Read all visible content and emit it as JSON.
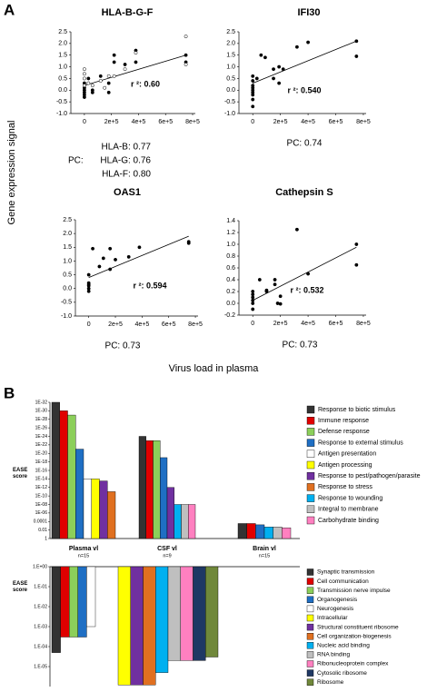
{
  "panel_a": {
    "label": "A",
    "ylabel": "Gene expression signal",
    "xlabel": "Virus load in plasma"
  },
  "panel_b": {
    "label": "B"
  },
  "chart_data": [
    {
      "type": "scatter",
      "title": "HLA-B-G-F",
      "annotation": "r ²: 0.60",
      "note_label": "PC:",
      "notes": [
        "HLA-B: 0.77",
        "HLA-G: 0.76",
        "HLA-F: 0.80"
      ],
      "series": [
        {
          "color": "#000000",
          "x": [
            0,
            0,
            0,
            0,
            0,
            0,
            30000,
            60000,
            60000,
            120000,
            180000,
            180000,
            220000,
            220000,
            300000,
            380000,
            380000,
            750000,
            750000
          ],
          "values": [
            0.3,
            0.1,
            0,
            -0.1,
            -0.2,
            -0.3,
            0.5,
            -0.1,
            0,
            0.6,
            0.3,
            -0.1,
            1.5,
            1.2,
            1.1,
            1.7,
            1.2,
            1.5,
            1.2
          ]
        },
        {
          "color": "#ffffff",
          "x": [
            0,
            0,
            0,
            0,
            30000,
            60000,
            120000,
            150000,
            180000,
            220000,
            300000,
            380000,
            750000,
            750000
          ],
          "values": [
            0.9,
            0.7,
            0.5,
            0.2,
            0.3,
            0.2,
            0.4,
            0.1,
            0.6,
            0.6,
            0.9,
            1.6,
            2.3,
            1.1
          ]
        }
      ],
      "trend_line": {
        "x": [
          0,
          750000
        ],
        "y": [
          0.2,
          1.5
        ]
      },
      "xlim": [
        -100000,
        820000
      ],
      "xticks": [
        0,
        {
          "value": 200000,
          "label": "2e+5"
        },
        {
          "value": 400000,
          "label": "4e+5"
        },
        {
          "value": 600000,
          "label": "6e+5"
        },
        {
          "value": 800000,
          "label": "8e+5"
        }
      ],
      "ylim": [
        -1.0,
        2.5
      ],
      "yticks": [
        2.5,
        {
          "value": 2,
          "label": "2.0"
        },
        1.5,
        {
          "value": 1,
          "label": "1.0"
        },
        0.5,
        {
          "value": 0,
          "label": "0.0"
        },
        -0.5,
        {
          "value": -1,
          "label": "-1.0"
        }
      ]
    },
    {
      "type": "scatter",
      "title": "IFI30",
      "annotation": "r ²: 0.540",
      "note": "PC: 0.74",
      "series": [
        {
          "color": "#000000",
          "x": [
            0,
            0,
            0,
            0,
            0,
            0,
            0,
            0,
            0,
            30000,
            60000,
            90000,
            150000,
            150000,
            190000,
            190000,
            220000,
            320000,
            400000,
            750000,
            750000
          ],
          "values": [
            0.6,
            0.4,
            0.2,
            0.1,
            0,
            -0.1,
            -0.2,
            -0.4,
            -0.7,
            0.5,
            1.5,
            1.4,
            0.9,
            0.5,
            1.0,
            0.3,
            0.9,
            1.85,
            2.05,
            2.1,
            1.45
          ]
        }
      ],
      "trend_line": {
        "x": [
          0,
          750000
        ],
        "y": [
          0.3,
          2.1
        ]
      },
      "xlim": [
        -100000,
        820000
      ],
      "xticks": [
        0,
        {
          "value": 200000,
          "label": "2e+5"
        },
        {
          "value": 400000,
          "label": "4e+5"
        },
        {
          "value": 600000,
          "label": "6e+5"
        },
        {
          "value": 800000,
          "label": "8e+5"
        }
      ],
      "ylim": [
        -1.0,
        2.5
      ],
      "yticks": [
        2.5,
        {
          "value": 2,
          "label": "2.0"
        },
        1.5,
        {
          "value": 1,
          "label": "1.0"
        },
        0.5,
        {
          "value": 0,
          "label": "0.0"
        },
        -0.5,
        {
          "value": -1,
          "label": "-1.0"
        }
      ]
    },
    {
      "type": "scatter",
      "title": "OAS1",
      "annotation": "r ²: 0.594",
      "note": "PC: 0.73",
      "series": [
        {
          "color": "#000000",
          "x": [
            0,
            0,
            0,
            0,
            0,
            0,
            30000,
            80000,
            110000,
            160000,
            160000,
            200000,
            300000,
            380000,
            750000,
            750000
          ],
          "values": [
            0.5,
            0.2,
            0.15,
            0.1,
            0,
            -0.1,
            1.45,
            0.8,
            1.1,
            0.7,
            1.45,
            1.05,
            1.15,
            1.5,
            1.7,
            1.65
          ]
        }
      ],
      "trend_line": {
        "x": [
          0,
          750000
        ],
        "y": [
          0.4,
          1.9
        ]
      },
      "xlim": [
        -100000,
        820000
      ],
      "xticks": [
        0,
        {
          "value": 200000,
          "label": "2e+5"
        },
        {
          "value": 400000,
          "label": "4e+5"
        },
        {
          "value": 600000,
          "label": "6e+5"
        },
        {
          "value": 800000,
          "label": "8e+5"
        }
      ],
      "ylim": [
        -1.0,
        2.5
      ],
      "yticks": [
        2.5,
        {
          "value": 2,
          "label": "2.0"
        },
        1.5,
        {
          "value": 1,
          "label": "1.0"
        },
        0.5,
        {
          "value": 0,
          "label": "0.0"
        },
        -0.5,
        {
          "value": -1,
          "label": "-1.0"
        }
      ]
    },
    {
      "type": "scatter",
      "title": "Cathepsin S",
      "annotation": "r ²: 0.532",
      "note": "PC: 0.73",
      "series": [
        {
          "color": "#000000",
          "x": [
            0,
            0,
            0,
            0,
            0,
            0,
            50000,
            100000,
            100000,
            160000,
            160000,
            180000,
            200000,
            200000,
            320000,
            400000,
            750000,
            750000
          ],
          "values": [
            0.2,
            0.15,
            0.1,
            0.05,
            0,
            -0.1,
            0.4,
            0.22,
            0.2,
            0.4,
            0.32,
            0,
            -0.01,
            0.12,
            1.25,
            0.5,
            1.0,
            0.65
          ]
        }
      ],
      "trend_line": {
        "x": [
          0,
          750000
        ],
        "y": [
          0.05,
          0.95
        ]
      },
      "xlim": [
        -100000,
        820000
      ],
      "xticks": [
        0,
        {
          "value": 200000,
          "label": "2e+5"
        },
        {
          "value": 400000,
          "label": "4e+5"
        },
        {
          "value": 600000,
          "label": "6e+5"
        },
        {
          "value": 800000,
          "label": "8e+5"
        }
      ],
      "ylim": [
        -0.2,
        1.4
      ],
      "yticks": [
        1.4,
        1.2,
        {
          "value": 1,
          "label": "1.0"
        },
        0.8,
        0.6,
        0.4,
        0.2,
        {
          "value": 0,
          "label": "0.0"
        },
        -0.2
      ]
    },
    {
      "type": "bar",
      "ylabel": "EASE score",
      "log": true,
      "categories": [
        "Plasma vl",
        "CSF vl",
        "Brain vl"
      ],
      "category_notes": [
        "n=15",
        "n=9",
        "n=15"
      ],
      "ylim": [
        1,
        1e-32
      ],
      "yticks": [
        {
          "value": 1e-32,
          "label": "1E-32"
        },
        {
          "value": 1e-30,
          "label": "1E-30"
        },
        {
          "value": 1e-28,
          "label": "1E-28"
        },
        {
          "value": 1e-26,
          "label": "1E-26"
        },
        {
          "value": 1e-24,
          "label": "1E-24"
        },
        {
          "value": 1e-22,
          "label": "1E-22"
        },
        {
          "value": 1e-20,
          "label": "1E-20"
        },
        {
          "value": 1e-18,
          "label": "1E-18"
        },
        {
          "value": 1e-16,
          "label": "1E-16"
        },
        {
          "value": 1e-14,
          "label": "1E-14"
        },
        {
          "value": 1e-12,
          "label": "1E-12"
        },
        {
          "value": 1e-10,
          "label": "1E-10"
        },
        {
          "value": 1e-08,
          "label": "1E-08"
        },
        {
          "value": 1e-06,
          "label": "1E-06"
        },
        0.0001,
        0.01,
        1
      ],
      "series": [
        {
          "name": "Response to biotic stimulus",
          "color": "#333333",
          "values": [
            1e-32,
            1e-24,
            0.0003
          ]
        },
        {
          "name": "Immune response",
          "color": "#e00000",
          "values": [
            1e-30,
            1e-23,
            0.0003
          ]
        },
        {
          "name": "Defense response",
          "color": "#8ccf5a",
          "values": [
            1e-29,
            1e-23,
            null
          ]
        },
        {
          "name": "Response to external stimulus",
          "color": "#1f6fc4",
          "values": [
            1e-21,
            1e-19,
            0.0006
          ]
        },
        {
          "name": "Antigen presentation",
          "color": "#ffffff",
          "values": [
            1e-14,
            null,
            null
          ]
        },
        {
          "name": "Antigen processing",
          "color": "#ffff00",
          "values": [
            1e-14,
            null,
            null
          ]
        },
        {
          "name": "Response to pest/pathogen/parasite",
          "color": "#7030a0",
          "values": [
            3e-14,
            1e-12,
            null
          ]
        },
        {
          "name": "Response to stress",
          "color": "#e07020",
          "values": [
            1e-11,
            null,
            null
          ]
        },
        {
          "name": "Response to wounding",
          "color": "#00b0f0",
          "values": [
            null,
            1e-08,
            0.002
          ]
        },
        {
          "name": "Integral to membrane",
          "color": "#bfbfbf",
          "values": [
            null,
            1e-08,
            0.002
          ]
        },
        {
          "name": "Carbohydrate binding",
          "color": "#ff80c0",
          "values": [
            null,
            1e-08,
            0.003
          ]
        }
      ]
    },
    {
      "type": "bar",
      "ylabel": "EASE score",
      "log": true,
      "categories": [
        null,
        null
      ],
      "ylim": [
        1e-06,
        1
      ],
      "yticks": [
        {
          "value": 1,
          "label": "1.E+00"
        },
        {
          "value": 0.1,
          "label": "1.E-01"
        },
        {
          "value": 0.01,
          "label": "1.E-02"
        },
        {
          "value": 0.001,
          "label": "1.E-03"
        },
        {
          "value": 0.0001,
          "label": "1.E-04"
        },
        {
          "value": 1e-05,
          "label": "1.E-05"
        }
      ],
      "series": [
        {
          "name": "Synaptic transmission",
          "color": "#333333",
          "values": [
            5e-05,
            null
          ]
        },
        {
          "name": "Cell communication",
          "color": "#e00000",
          "values": [
            0.0003,
            null
          ]
        },
        {
          "name": "Transmission nerve impulse",
          "color": "#8ccf5a",
          "values": [
            0.0003,
            null
          ]
        },
        {
          "name": "Organogenesis",
          "color": "#1f6fc4",
          "values": [
            0.0003,
            null
          ]
        },
        {
          "name": "Neurogenesis",
          "color": "#ffffff",
          "values": [
            0.001,
            null
          ]
        },
        {
          "name": "Intracellular",
          "color": "#ffff00",
          "values": [
            null,
            1.2e-06
          ]
        },
        {
          "name": "Structural constituent ribosome",
          "color": "#7030a0",
          "values": [
            null,
            1.2e-06
          ]
        },
        {
          "name": "Cell organization-biogenesis",
          "color": "#e07020",
          "values": [
            null,
            1.2e-06
          ]
        },
        {
          "name": "Nucleic acid binding",
          "color": "#00b0f0",
          "values": [
            null,
            5e-06
          ]
        },
        {
          "name": "RNA binding",
          "color": "#bfbfbf",
          "values": [
            null,
            2e-05
          ]
        },
        {
          "name": "Ribonucleoprotein complex",
          "color": "#ff80c0",
          "values": [
            null,
            2e-05
          ]
        },
        {
          "name": "Cytosolic ribosome",
          "color": "#1f3864",
          "values": [
            null,
            2e-05
          ]
        },
        {
          "name": "Ribosome",
          "color": "#70883a",
          "values": [
            null,
            3e-05
          ]
        }
      ]
    }
  ]
}
